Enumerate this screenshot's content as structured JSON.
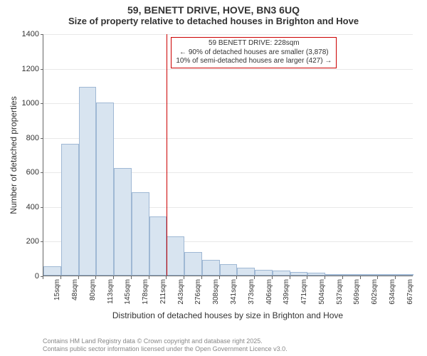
{
  "title": {
    "main": "59, BENETT DRIVE, HOVE, BN3 6UQ",
    "sub": "Size of property relative to detached houses in Brighton and Hove"
  },
  "chart": {
    "type": "histogram",
    "ylabel": "Number of detached properties",
    "xlabel": "Distribution of detached houses by size in Brighton and Hove",
    "ylim": [
      0,
      1400
    ],
    "ytick_step": 200,
    "bar_fill": "#d8e4f0",
    "bar_stroke": "#9fb8d4",
    "grid_color": "#e8e8e8",
    "axis_color": "#666666",
    "background_color": "#ffffff",
    "marker_color": "#cc0000",
    "xtick_labels": [
      "15sqm",
      "48sqm",
      "80sqm",
      "113sqm",
      "145sqm",
      "178sqm",
      "211sqm",
      "243sqm",
      "276sqm",
      "308sqm",
      "341sqm",
      "373sqm",
      "406sqm",
      "439sqm",
      "471sqm",
      "504sqm",
      "537sqm",
      "569sqm",
      "602sqm",
      "634sqm",
      "667sqm"
    ],
    "values": [
      55,
      760,
      1090,
      1000,
      620,
      480,
      340,
      225,
      135,
      90,
      65,
      45,
      35,
      30,
      20,
      15,
      10,
      8,
      6,
      5,
      4
    ],
    "marker_index": 7,
    "label_fontsize": 12,
    "tick_fontsize": 11,
    "xtick_fontsize": 10
  },
  "annotation": {
    "line1": "59 BENETT DRIVE: 228sqm",
    "line2": "← 90% of detached houses are smaller (3,878)",
    "line3": "10% of semi-detached houses are larger (427) →"
  },
  "footer": {
    "line1": "Contains HM Land Registry data © Crown copyright and database right 2025.",
    "line2": "Contains public sector information licensed under the Open Government Licence v3.0."
  }
}
